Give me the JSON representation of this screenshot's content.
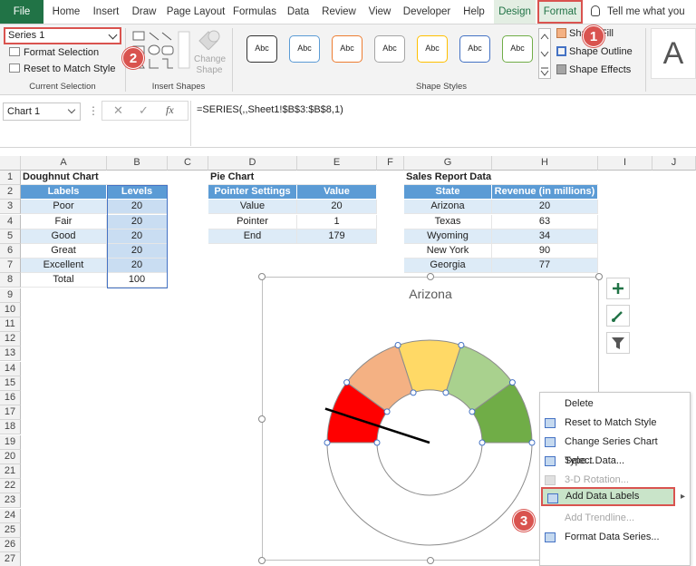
{
  "tabs": [
    "File",
    "Home",
    "Insert",
    "Draw",
    "Page Layout",
    "Formulas",
    "Data",
    "Review",
    "View",
    "Developer",
    "Help",
    "Design",
    "Format"
  ],
  "tell_me": "Tell me what you wa",
  "ribbon": {
    "current_selection": {
      "selected": "Series 1",
      "format_selection": "Format Selection",
      "reset_to_match_style": "Reset to Match Style",
      "label": "Current Selection"
    },
    "insert_shapes": {
      "change_shape_line1": "Change",
      "change_shape_line2": "Shape",
      "label": "Insert Shapes"
    },
    "shape_styles": {
      "style_text": "Abc",
      "style_colors": [
        "#333333",
        "#5b9bd5",
        "#ed7d31",
        "#a5a5a5",
        "#ffc000",
        "#4472c4",
        "#70ad47"
      ],
      "shape_fill": "Shape Fill",
      "shape_outline": "Shape Outline",
      "shape_effects": "Shape Effects",
      "label": "Shape Styles"
    },
    "wordart_letter": "A"
  },
  "formula_bar": {
    "name_box": "Chart 1",
    "fx": "fx",
    "formula": "=SERIES(,,Sheet1!$B$3:$B$8,1)"
  },
  "columns": [
    "A",
    "B",
    "C",
    "D",
    "E",
    "F",
    "G",
    "H",
    "I",
    "J"
  ],
  "rows": [
    "1",
    "2",
    "3",
    "4",
    "5",
    "6",
    "7",
    "8",
    "9",
    "10",
    "11",
    "12",
    "13",
    "14",
    "15",
    "16",
    "17",
    "18",
    "19",
    "20",
    "21",
    "22",
    "23",
    "24",
    "25",
    "26",
    "27"
  ],
  "doughnut": {
    "title": "Doughnut Chart",
    "headers": [
      "Labels",
      "Levels"
    ],
    "rows": [
      [
        "Poor",
        "20"
      ],
      [
        "Fair",
        "20"
      ],
      [
        "Good",
        "20"
      ],
      [
        "Great",
        "20"
      ],
      [
        "Excellent",
        "20"
      ],
      [
        "Total",
        "100"
      ]
    ]
  },
  "pie": {
    "title": "Pie Chart",
    "headers": [
      "Pointer Settings",
      "Value"
    ],
    "rows": [
      [
        "Value",
        "20"
      ],
      [
        "Pointer",
        "1"
      ],
      [
        "End",
        "179"
      ]
    ]
  },
  "sales": {
    "title": "Sales Report Data",
    "headers": [
      "State",
      "Revenue (in millions)"
    ],
    "rows": [
      [
        "Arizona",
        "20"
      ],
      [
        "Texas",
        "63"
      ],
      [
        "Wyoming",
        "34"
      ],
      [
        "New York",
        "90"
      ],
      [
        "Georgia",
        "77"
      ]
    ]
  },
  "chart_data": {
    "type": "pie",
    "title": "Arizona",
    "categories": [
      "Poor",
      "Fair",
      "Good",
      "Great",
      "Excellent",
      "Total"
    ],
    "values": [
      20,
      20,
      20,
      20,
      20,
      100
    ],
    "colors": [
      "#ff0000",
      "#f4b183",
      "#ffd966",
      "#a9d18e",
      "#70ad47",
      "#ffffff"
    ],
    "pointer": {
      "value": 20,
      "pointer": 1,
      "end": 179
    }
  },
  "context_menu": [
    {
      "label": "Delete",
      "disabled": false,
      "highlighted": false
    },
    {
      "label": "Reset to Match Style",
      "disabled": false,
      "highlighted": false
    },
    {
      "label": "Change Series Chart Type...",
      "disabled": false,
      "highlighted": false
    },
    {
      "label": "Select Data...",
      "disabled": false,
      "highlighted": false
    },
    {
      "label": "3-D Rotation...",
      "disabled": true,
      "highlighted": false
    },
    {
      "label": "Add Data Labels",
      "disabled": false,
      "highlighted": true
    },
    {
      "label": "Add Trendline...",
      "disabled": true,
      "highlighted": false
    },
    {
      "label": "Format Data Series...",
      "disabled": false,
      "highlighted": false
    }
  ],
  "badges": [
    "1",
    "2",
    "3"
  ]
}
